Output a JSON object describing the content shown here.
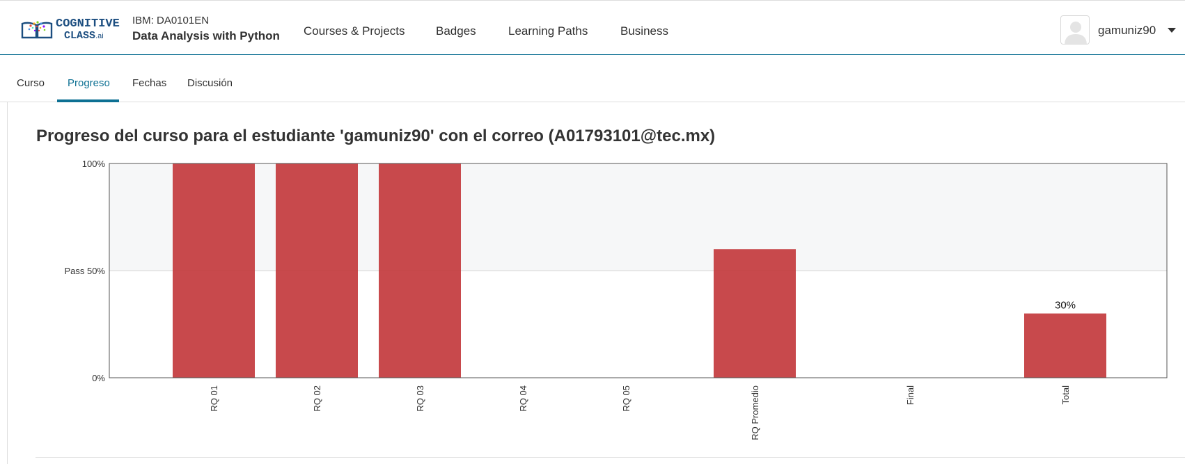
{
  "header": {
    "logo": {
      "line1": "COGNITIVE",
      "line2": "CLASS",
      "suffix": ".ai"
    },
    "course_code": "IBM: DA0101EN",
    "course_name": "Data Analysis with Python",
    "nav": [
      "Courses & Projects",
      "Badges",
      "Learning Paths",
      "Business"
    ],
    "username": "gamuniz90"
  },
  "tabs": [
    {
      "label": "Curso",
      "active": false
    },
    {
      "label": "Progreso",
      "active": true
    },
    {
      "label": "Fechas",
      "active": false
    },
    {
      "label": "Discusión",
      "active": false
    }
  ],
  "page_title": "Progreso del curso para el estudiante 'gamuniz90' con el correo (A01793101@tec.mx)",
  "colors": {
    "accent": "#0d7093",
    "bar": "#c33a3d",
    "pass_region": "#f6f7f8"
  },
  "chart_data": {
    "type": "bar",
    "categories": [
      "RQ 01",
      "RQ 02",
      "RQ 03",
      "RQ 04",
      "RQ 05",
      "RQ Promedio",
      "Final",
      "Total"
    ],
    "values": [
      100,
      100,
      100,
      0,
      0,
      60,
      0,
      30
    ],
    "ylim": [
      0,
      100
    ],
    "ytick_labels": [
      {
        "value": 0,
        "label": "0%"
      },
      {
        "value": 50,
        "label": "Pass 50%"
      },
      {
        "value": 100,
        "label": "100%"
      }
    ],
    "pass_threshold": 50,
    "data_labels": [
      {
        "category": "Total",
        "label": "30%"
      }
    ]
  }
}
